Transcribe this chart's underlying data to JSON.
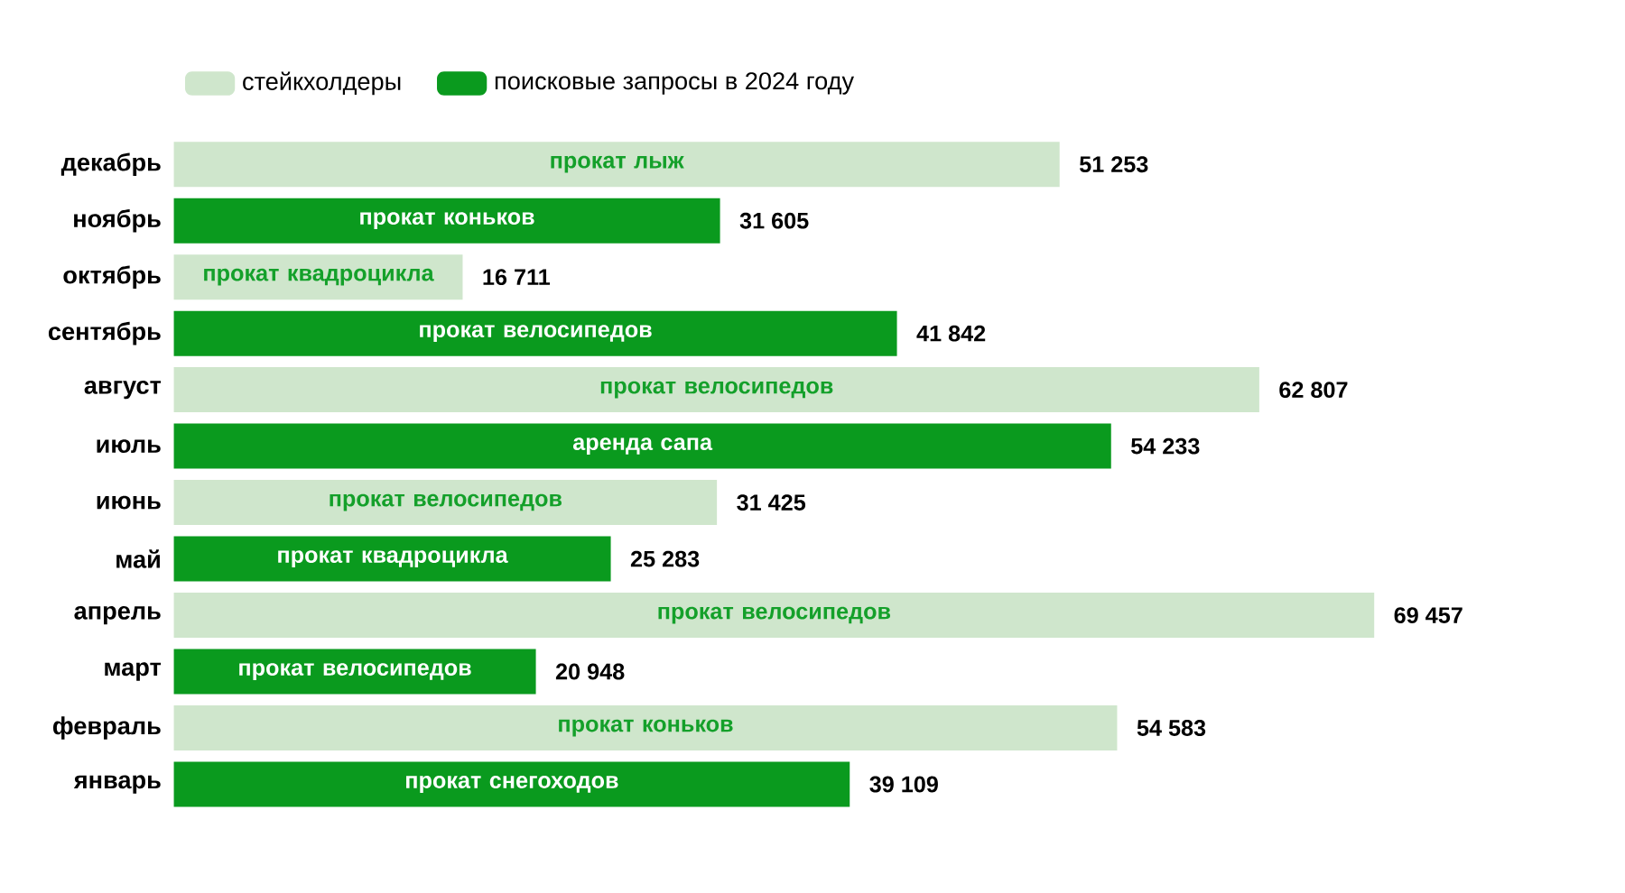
{
  "chart_data": {
    "type": "bar",
    "orientation": "horizontal",
    "tick_labels": "y",
    "legend": "top left",
    "categories": [
      "декабрь",
      "ноябрь",
      "октябрь",
      "сентябрь",
      "август",
      "июль",
      "июнь",
      "май",
      "апрель",
      "март",
      "февраль",
      "январь"
    ],
    "series": [
      {
        "name": "стейкхолдеры",
        "color": "#cfe6cc",
        "values": [
          51253,
          null,
          16711,
          null,
          62807,
          null,
          31425,
          null,
          69457,
          null,
          54583,
          null
        ],
        "value_labels": [
          "51 253",
          null,
          "16 711",
          null,
          "62 807",
          null,
          "31 425",
          null,
          "69 457",
          null,
          "54 583",
          null
        ]
      },
      {
        "name": "поисковые запросы в 2024 году",
        "color": "#0a9a1e",
        "values": [
          null,
          31605,
          null,
          41842,
          null,
          54233,
          null,
          25283,
          null,
          20948,
          null,
          39109
        ],
        "value_labels": [
          null,
          "31 605",
          null,
          "41 842",
          null,
          "54 233",
          null,
          "25 283",
          null,
          "20 948",
          null,
          "39 109"
        ]
      }
    ],
    "annotations": [
      {
        "text": "прокат лыж",
        "y": "декабрь"
      },
      {
        "text": "прокат коньков",
        "y": "ноябрь"
      },
      {
        "text": "прокат квадроцикла",
        "y": "октябрь"
      },
      {
        "text": "прокат велосипедов",
        "y": "сентябрь"
      },
      {
        "text": "прокат велосипедов",
        "y": "август"
      },
      {
        "text": "аренда сапа",
        "y": "июль"
      },
      {
        "text": "прокат велосипедов",
        "y": "июнь"
      },
      {
        "text": "прокат квадроцикла",
        "y": "май"
      },
      {
        "text": "прокат велосипедов",
        "y": "апрель"
      },
      {
        "text": "прокат велосипедов",
        "y": "март"
      },
      {
        "text": "прокат коньков",
        "y": "февраль"
      },
      {
        "text": "прокат снегоходов",
        "y": "январь"
      }
    ]
  }
}
